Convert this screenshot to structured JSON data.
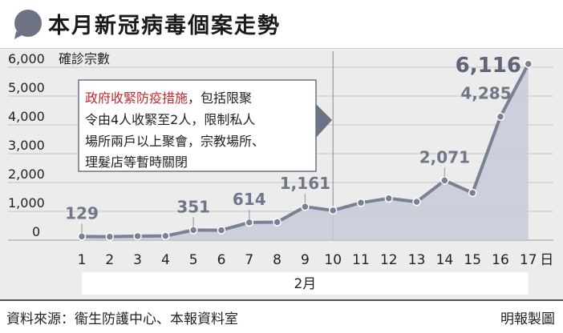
{
  "title": "本月新冠病毒個案走勢",
  "footer": {
    "source": "資料來源：衞生防護中心、本報資料室",
    "credit": "明報製圖"
  },
  "colors": {
    "area_fill": "#c6cbd8",
    "line": "#7b8194",
    "highlight_red": "#c0282d",
    "month_band": "#ffffff"
  },
  "annotation": {
    "highlight": "政府收緊防疫措施",
    "rest_line1": "，包括限聚",
    "line2": "令由4人收緊至2人，限制私人",
    "line3": "場所兩戶以上聚會，宗教場所、",
    "line4": "理髮店等暫時關閉"
  },
  "chart_data": {
    "type": "area",
    "ylabel": "確診宗數",
    "xlabel": "2月",
    "x_unit": "日",
    "x": [
      1,
      2,
      3,
      4,
      5,
      6,
      7,
      8,
      9,
      10,
      11,
      12,
      13,
      14,
      15,
      16,
      17
    ],
    "values": [
      129,
      120,
      140,
      145,
      351,
      345,
      614,
      625,
      1161,
      1030,
      1300,
      1450,
      1330,
      2071,
      1640,
      4285,
      6116
    ],
    "data_labels": [
      {
        "x": 1,
        "text": "129"
      },
      {
        "x": 5,
        "text": "351"
      },
      {
        "x": 7,
        "text": "614"
      },
      {
        "x": 9,
        "text": "1,161"
      },
      {
        "x": 14,
        "text": "2,071"
      },
      {
        "x": 16,
        "text": "4,285"
      },
      {
        "x": 17,
        "text": "6,116"
      }
    ],
    "y_ticks": [
      "0",
      "1,000",
      "2,000",
      "3,000",
      "4,000",
      "5,000",
      "6,000"
    ],
    "ylim": [
      0,
      6000
    ],
    "grid": true,
    "event_marker_x": 10
  }
}
